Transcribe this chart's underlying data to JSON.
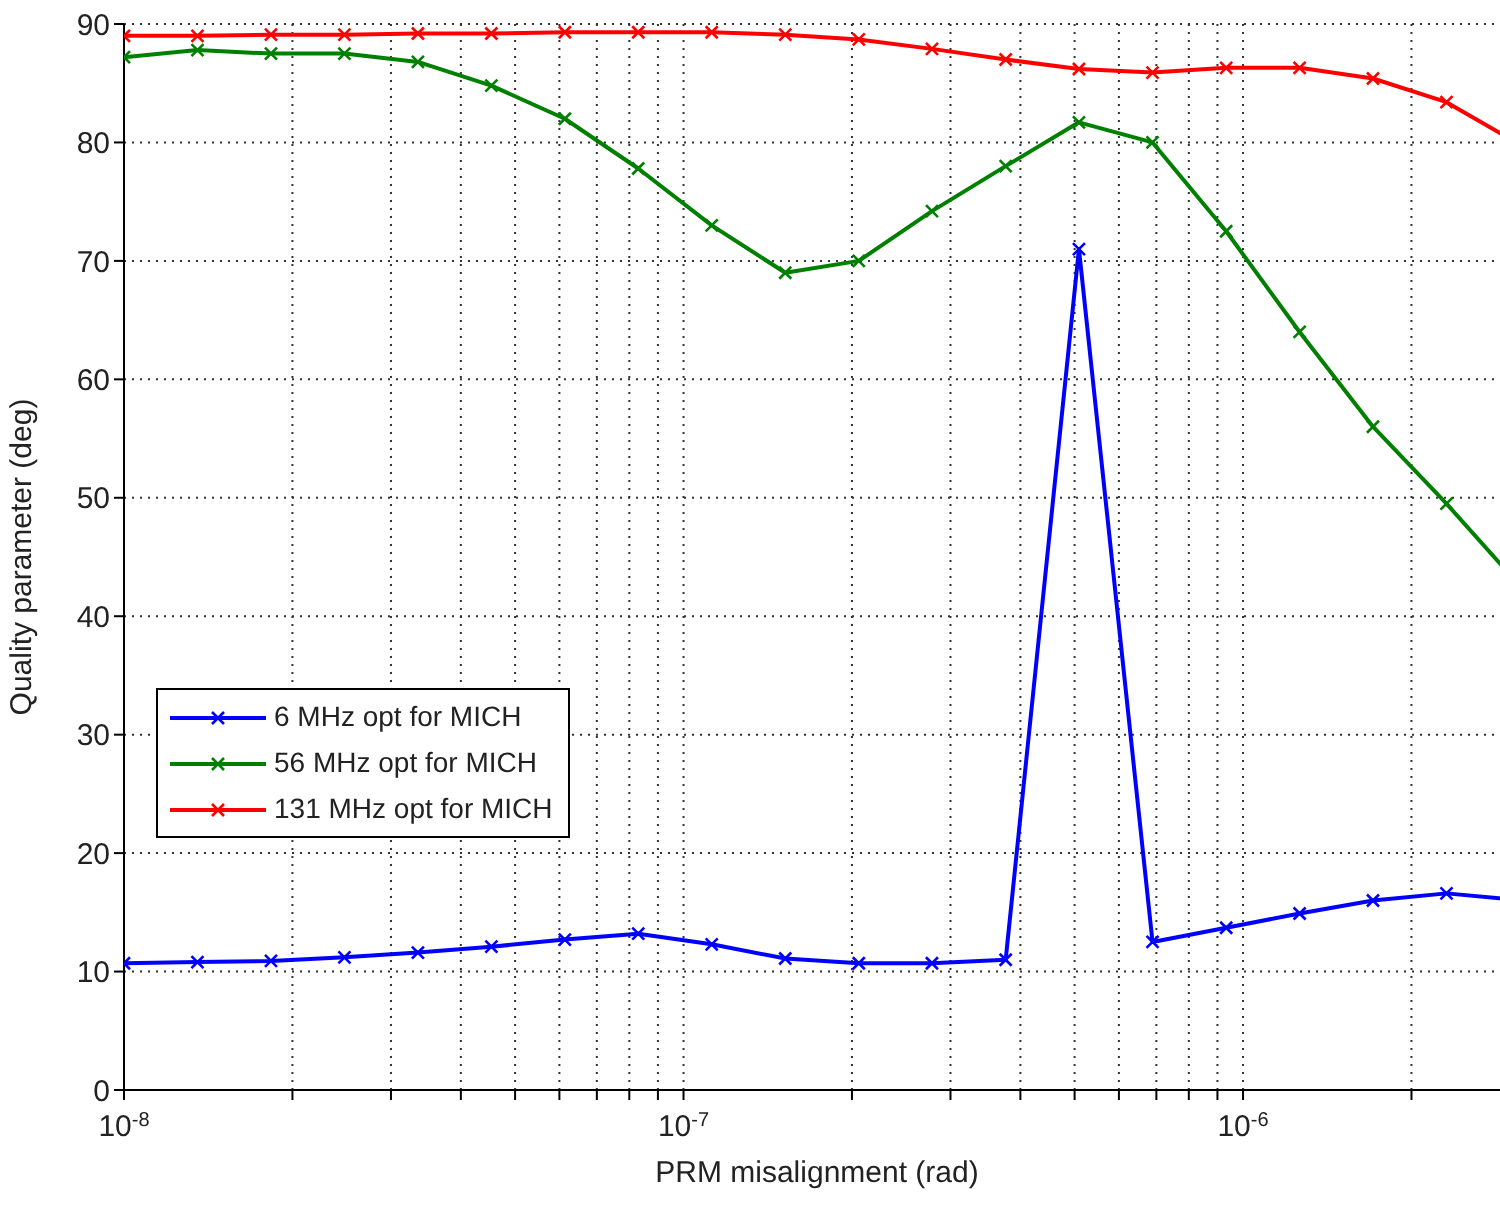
{
  "chart_data": {
    "type": "line",
    "xlabel": "PRM misalignment (rad)",
    "ylabel": "Quality parameter (deg)",
    "x": [
      1e-08,
      1.353e-08,
      1.831e-08,
      2.477e-08,
      3.352e-08,
      4.535e-08,
      6.136e-08,
      8.3e-08,
      1.123e-07,
      1.52e-07,
      2.057e-07,
      2.78e-07,
      3.765e-07,
      5.09e-07,
      6.89e-07,
      9.33e-07,
      1.262e-06,
      1.707e-06,
      2.31e-06,
      3e-06
    ],
    "series": [
      {
        "name": "6 MHz opt for MICH",
        "color": "#0000ff",
        "values": [
          10.7,
          10.8,
          10.9,
          11.2,
          11.6,
          12.1,
          12.7,
          13.2,
          12.3,
          11.1,
          10.7,
          10.7,
          11.0,
          71.0,
          12.5,
          13.7,
          14.9,
          16.0,
          16.6,
          16.1
        ]
      },
      {
        "name": "56 MHz opt for MICH",
        "color": "#008000",
        "values": [
          87.2,
          87.8,
          87.5,
          87.5,
          86.8,
          84.8,
          82.0,
          77.8,
          73.0,
          69.0,
          70.0,
          74.2,
          78.0,
          81.7,
          80.0,
          72.5,
          64.0,
          56.0,
          49.5,
          43.5
        ]
      },
      {
        "name": "131 MHz opt for MICH",
        "color": "#ff0000",
        "values": [
          89.0,
          89.0,
          89.1,
          89.1,
          89.2,
          89.2,
          89.3,
          89.3,
          89.3,
          89.1,
          88.7,
          87.9,
          87.0,
          86.2,
          85.9,
          86.3,
          86.3,
          85.4,
          83.4,
          80.3
        ]
      }
    ],
    "xlim": [
      1e-08,
      3e-06
    ],
    "xticks": [
      {
        "value": 1e-08,
        "label": "10$^{-8}$"
      },
      {
        "value": 2e-08,
        "label": null
      },
      {
        "value": 3e-08,
        "label": null
      },
      {
        "value": 4e-08,
        "label": null
      },
      {
        "value": 5e-08,
        "label": null
      },
      {
        "value": 6e-08,
        "label": null
      },
      {
        "value": 7e-08,
        "label": null
      },
      {
        "value": 8e-08,
        "label": null
      },
      {
        "value": 9e-08,
        "label": null
      },
      {
        "value": 1e-07,
        "label": "10$^{-7}$"
      },
      {
        "value": 2e-07,
        "label": null
      },
      {
        "value": 3e-07,
        "label": null
      },
      {
        "value": 4e-07,
        "label": null
      },
      {
        "value": 5e-07,
        "label": null
      },
      {
        "value": 6e-07,
        "label": null
      },
      {
        "value": 7e-07,
        "label": null
      },
      {
        "value": 8e-07,
        "label": null
      },
      {
        "value": 9e-07,
        "label": null
      },
      {
        "value": 1e-06,
        "label": "10$^{-6}$"
      },
      {
        "value": 2e-06,
        "label": null
      },
      {
        "value": 3e-06,
        "label": null
      }
    ],
    "ylim": [
      0,
      90
    ],
    "yticks": [
      0,
      10,
      20,
      30,
      40,
      50,
      60,
      70,
      80,
      90
    ],
    "log": "x",
    "grid": true,
    "legend": "bottom left",
    "marker": "cross",
    "line_style": "solid"
  }
}
